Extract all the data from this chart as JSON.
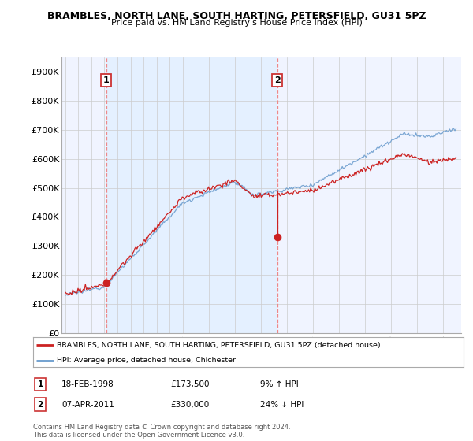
{
  "title": "BRAMBLES, NORTH LANE, SOUTH HARTING, PETERSFIELD, GU31 5PZ",
  "subtitle": "Price paid vs. HM Land Registry's House Price Index (HPI)",
  "legend_line1": "BRAMBLES, NORTH LANE, SOUTH HARTING, PETERSFIELD, GU31 5PZ (detached house)",
  "legend_line2": "HPI: Average price, detached house, Chichester",
  "footnote": "Contains HM Land Registry data © Crown copyright and database right 2024.\nThis data is licensed under the Open Government Licence v3.0.",
  "transaction1_label": "1",
  "transaction1_date": "18-FEB-1998",
  "transaction1_price": "£173,500",
  "transaction1_hpi": "9% ↑ HPI",
  "transaction2_label": "2",
  "transaction2_date": "07-APR-2011",
  "transaction2_price": "£330,000",
  "transaction2_hpi": "24% ↓ HPI",
  "hpi_color": "#6699cc",
  "hpi_fill_color": "#ddeeff",
  "price_color": "#cc2222",
  "marker_color": "#cc2222",
  "dashed_line_color": "#ee8888",
  "ylim_min": 0,
  "ylim_max": 950000,
  "yticks": [
    0,
    100000,
    200000,
    300000,
    400000,
    500000,
    600000,
    700000,
    800000,
    900000
  ],
  "ytick_labels": [
    "£0",
    "£100K",
    "£200K",
    "£300K",
    "£400K",
    "£500K",
    "£600K",
    "£700K",
    "£800K",
    "£900K"
  ],
  "year_start": 1995,
  "year_end": 2025,
  "transaction1_year": 1998.13,
  "transaction1_value": 173500,
  "transaction2_year": 2011.27,
  "transaction2_value": 330000,
  "background_color": "#ffffff",
  "plot_bg_color": "#f0f4ff",
  "grid_color": "#cccccc"
}
